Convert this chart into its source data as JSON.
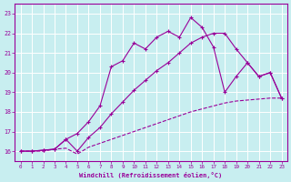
{
  "background_color": "#c8eef0",
  "plot_bg_color": "#c8eef0",
  "line_color": "#990099",
  "grid_color": "#ffffff",
  "xlim": [
    -0.5,
    23.5
  ],
  "ylim": [
    15.5,
    23.5
  ],
  "yticks": [
    16,
    17,
    18,
    19,
    20,
    21,
    22,
    23
  ],
  "xticks": [
    0,
    1,
    2,
    3,
    4,
    5,
    6,
    7,
    8,
    9,
    10,
    11,
    12,
    13,
    14,
    15,
    16,
    17,
    18,
    19,
    20,
    21,
    22,
    23
  ],
  "xlabel": "Windchill (Refroidissement éolien,°C)",
  "line1_x": [
    0,
    1,
    2,
    3,
    4,
    5,
    6,
    7,
    8,
    9,
    10,
    11,
    12,
    13,
    14,
    15,
    16,
    17,
    18,
    19,
    20,
    21,
    22,
    23
  ],
  "line1_y": [
    16.0,
    16.0,
    16.0,
    16.1,
    16.15,
    15.85,
    16.2,
    16.4,
    16.6,
    16.8,
    17.0,
    17.2,
    17.4,
    17.6,
    17.8,
    18.0,
    18.15,
    18.3,
    18.45,
    18.55,
    18.6,
    18.65,
    18.7,
    18.7
  ],
  "line2_x": [
    0,
    1,
    2,
    3,
    4,
    5,
    6,
    7,
    8,
    9,
    10,
    11,
    12,
    13,
    14,
    15,
    16,
    17,
    18,
    19,
    20,
    21,
    22,
    23
  ],
  "line2_y": [
    16.0,
    16.0,
    16.05,
    16.1,
    16.6,
    16.0,
    16.7,
    17.2,
    17.9,
    18.5,
    19.1,
    19.6,
    20.1,
    20.5,
    21.0,
    21.5,
    21.8,
    22.0,
    22.0,
    21.2,
    20.5,
    19.8,
    20.0,
    18.7
  ],
  "line3_x": [
    0,
    1,
    2,
    3,
    4,
    5,
    6,
    7,
    8,
    9,
    10,
    11,
    12,
    13,
    14,
    15,
    16,
    17,
    18,
    19,
    20,
    21,
    22,
    23
  ],
  "line3_y": [
    16.0,
    16.0,
    16.05,
    16.1,
    16.6,
    16.9,
    17.5,
    18.3,
    20.3,
    20.6,
    21.5,
    21.2,
    21.8,
    22.1,
    21.8,
    22.8,
    22.3,
    21.3,
    19.0,
    19.8,
    20.5,
    19.8,
    20.0,
    18.7
  ]
}
